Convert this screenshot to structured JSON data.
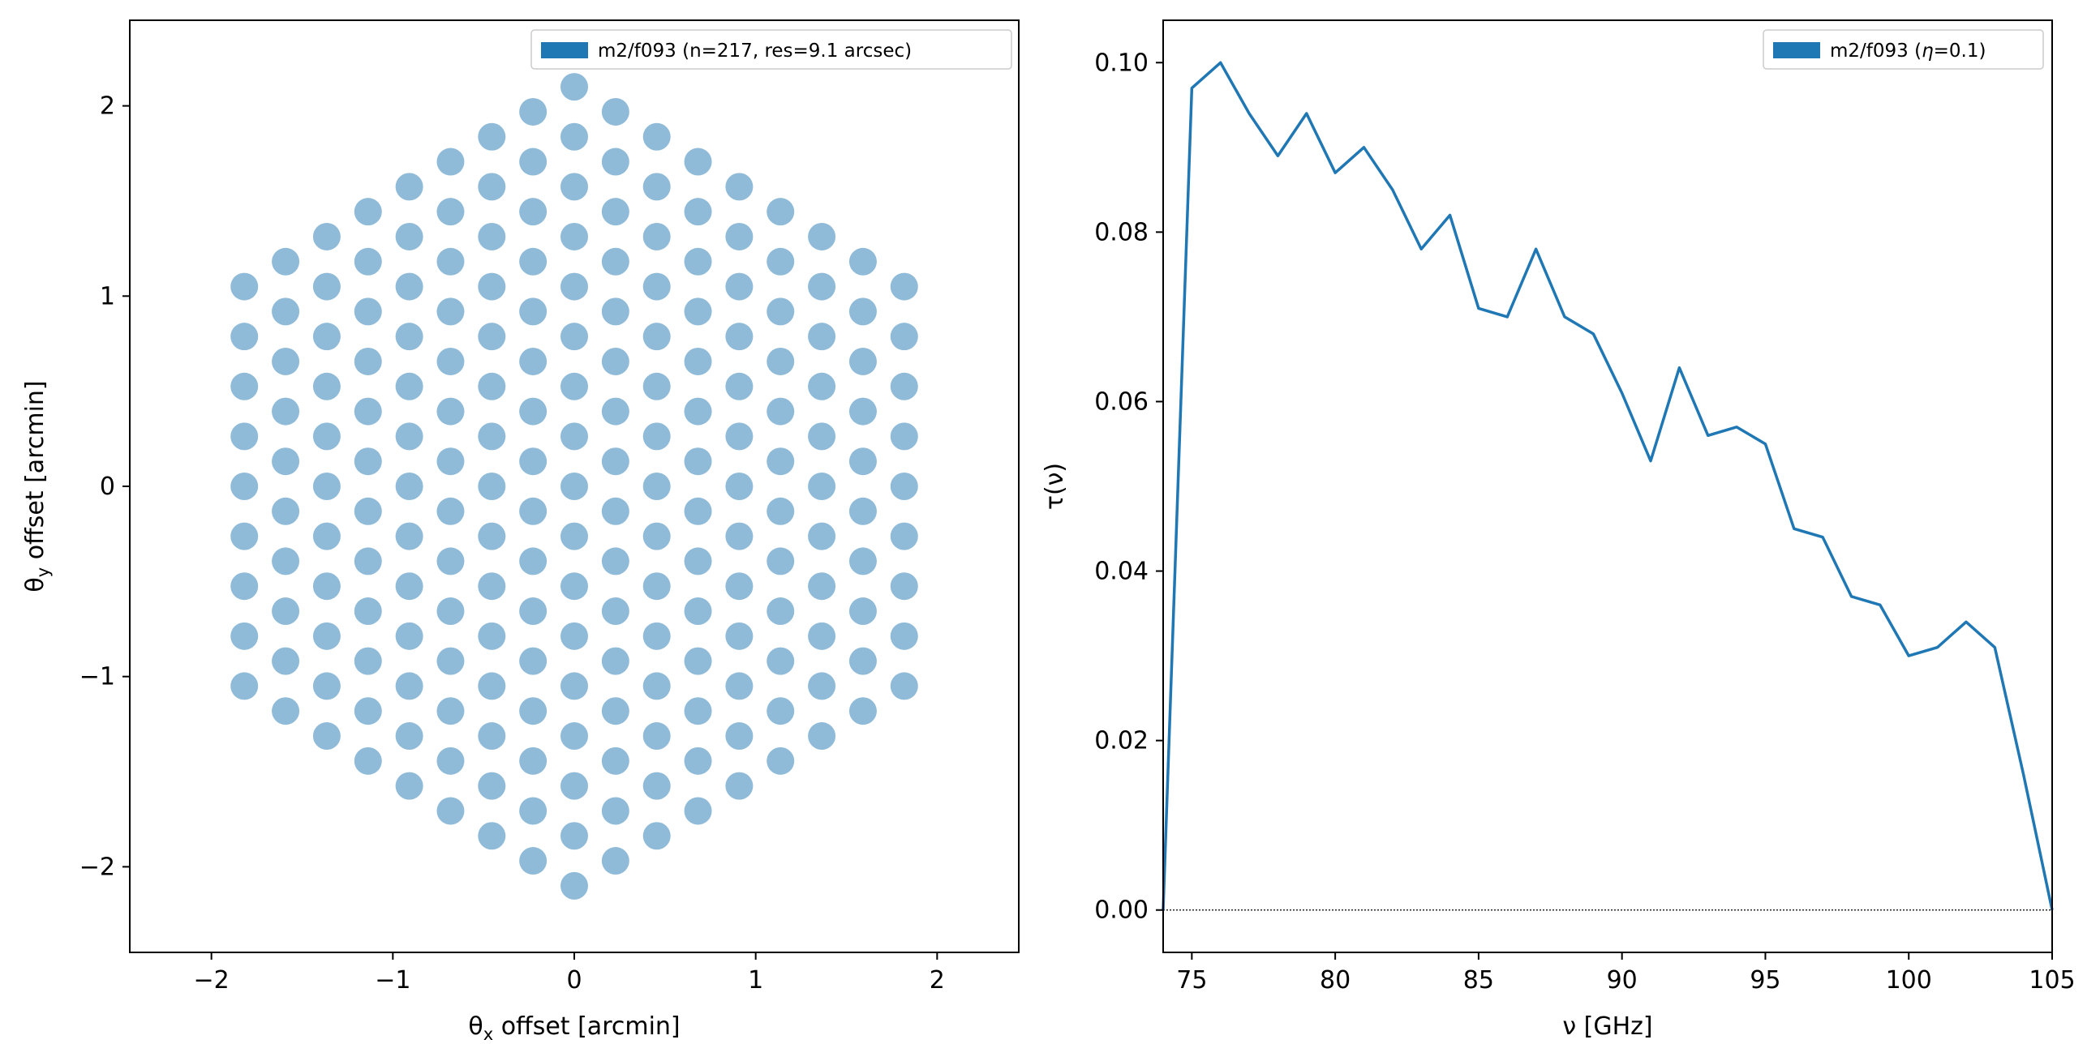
{
  "chart_data": [
    {
      "type": "scatter",
      "title": "",
      "xlabel": "θx offset [arcmin]",
      "ylabel": "θy offset [arcmin]",
      "xlim": [
        -2.45,
        2.45
      ],
      "ylim": [
        -2.45,
        2.45
      ],
      "xticks": [
        -2,
        -1,
        0,
        1,
        2
      ],
      "xtick_labels": [
        "−2",
        "−1",
        "0",
        "1",
        "2"
      ],
      "yticks": [
        -2,
        -1,
        0,
        1,
        2
      ],
      "ytick_labels": [
        "−2",
        "−1",
        "0",
        "1",
        "2"
      ],
      "grid": false,
      "legend": {
        "placement": "top-right",
        "entries": [
          {
            "label": "m2/f093 (n=217, res=9.1 arcsec)",
            "color": "#1f77b4"
          }
        ]
      },
      "points_description": "hexagonal array, 217 detectors, 9 per side, pitch 0.2625 arcmin",
      "hex_rings": 8,
      "pitch_arcmin": 0.2625,
      "point_color": "#1f77b4",
      "point_alpha": 0.5
    },
    {
      "type": "line",
      "title": "",
      "xlabel": "ν [GHz]",
      "ylabel": "τ(ν)",
      "xlim": [
        74,
        105
      ],
      "ylim": [
        -0.005,
        0.105
      ],
      "xticks": [
        75,
        80,
        85,
        90,
        95,
        100,
        105
      ],
      "xtick_labels": [
        "75",
        "80",
        "85",
        "90",
        "95",
        "100",
        "105"
      ],
      "yticks": [
        0.0,
        0.02,
        0.04,
        0.06,
        0.08,
        0.1
      ],
      "ytick_labels": [
        "0.00",
        "0.02",
        "0.04",
        "0.06",
        "0.08",
        "0.10"
      ],
      "grid": false,
      "baseline": 0.0,
      "legend": {
        "placement": "top-right",
        "entries": [
          {
            "label": "m2/f093 (η=0.1)",
            "color": "#1f77b4"
          }
        ]
      },
      "series": [
        {
          "name": "m2/f093 (η=0.1)",
          "color": "#1f77b4",
          "x": [
            74,
            75,
            76,
            77,
            78,
            79,
            80,
            81,
            82,
            83,
            84,
            85,
            86,
            87,
            88,
            89,
            90,
            91,
            92,
            93,
            94,
            95,
            96,
            97,
            98,
            99,
            100,
            101,
            102,
            103,
            104,
            105
          ],
          "y": [
            0.0,
            0.097,
            0.1,
            0.094,
            0.089,
            0.094,
            0.087,
            0.09,
            0.085,
            0.078,
            0.082,
            0.071,
            0.07,
            0.078,
            0.07,
            0.068,
            0.061,
            0.053,
            0.064,
            0.056,
            0.057,
            0.055,
            0.045,
            0.044,
            0.037,
            0.036,
            0.03,
            0.031,
            0.034,
            0.031,
            0.016,
            0.0
          ]
        }
      ]
    }
  ]
}
